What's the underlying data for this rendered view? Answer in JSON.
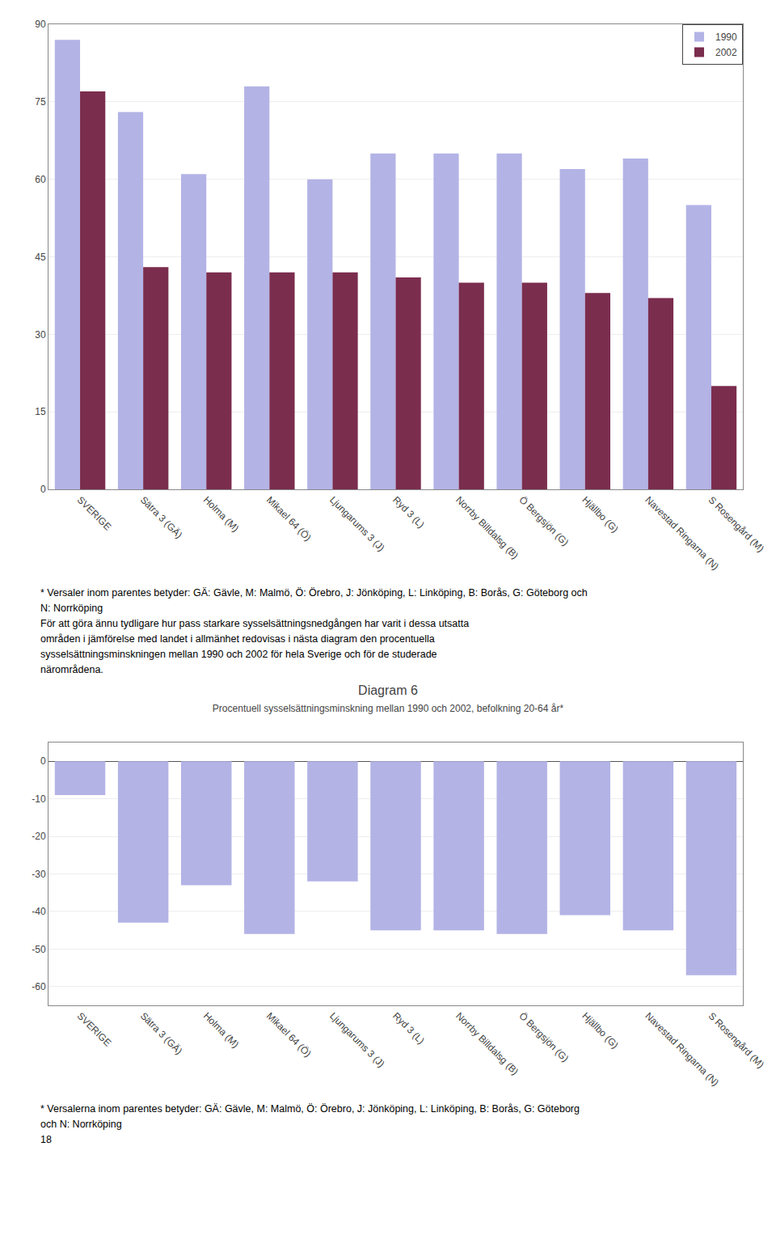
{
  "chart_data": [
    {
      "type": "bar",
      "categories": [
        "SVERIGE",
        "Sätra 3 (GÄ)",
        "Holma (M)",
        "Mikael 64 (Ö)",
        "Ljungarums 3 (J)",
        "Ryd 3 (L)",
        "Norrby Billdalsg (B)",
        "Ö Bergsjön (G)",
        "Hjällbo (G)",
        "Navestad Ringarna (N)",
        "S Rosengård (M)"
      ],
      "series": [
        {
          "name": "1990",
          "color": "#b3b3e6",
          "values": [
            87,
            73,
            61,
            78,
            60,
            65,
            65,
            65,
            62,
            64,
            55
          ]
        },
        {
          "name": "2002",
          "color": "#7b2d4e",
          "values": [
            77,
            43,
            42,
            42,
            42,
            41,
            40,
            40,
            38,
            37,
            20
          ]
        }
      ],
      "ylim": [
        0,
        90
      ],
      "yticks": [
        0,
        15,
        30,
        45,
        60,
        75,
        90
      ],
      "grid": true,
      "legend": "upper right",
      "annotations": [
        "* Versaler inom parentes betyder: GÄ: Gävle, M: Malmö, Ö: Örebro, J: Jönköping, L: Linköping, B: Borås, G: Göteborg och",
        "N: Norrköping",
        "För att göra ännu tydligare hur pass starkare sysselsättningsnedgången har varit i dessa utsatta",
        "områden i jämförelse med landet i allmänhet redovisas i nästa diagram den procentuella",
        "sysselsättningsminskningen mellan 1990 och 2002 för hela Sverige och för de studerade",
        "närområdena."
      ]
    },
    {
      "type": "bar",
      "title": "Diagram 6",
      "subtitle": "Procentuell sysselsättningsminskning mellan 1990 och 2002, befolkning 20-64 år*",
      "categories": [
        "SVERIGE",
        "Sätra 3 (GÄ)",
        "Holma (M)",
        "Mikael 64 (Ö)",
        "Ljungarums 3 (J)",
        "Ryd 3 (L)",
        "Norrby Billdalsg (B)",
        "Ö Bergsjön (G)",
        "Hjällbo (G)",
        "Navestad Ringarna (N)",
        "S Rosengård (M)"
      ],
      "values": [
        -9,
        -43,
        -33,
        -46,
        -32,
        -45,
        -45,
        -46,
        -41,
        -45,
        -57
      ],
      "color": "#b3b3e6",
      "ylim": [
        -65,
        5
      ],
      "yticks": [
        0,
        -10,
        -20,
        -30,
        -40,
        -50,
        -60
      ],
      "grid": true,
      "annotations": [
        "* Versalerna inom parentes betyder: GÄ: Gävle, M: Malmö, Ö: Örebro, J: Jönköping, L: Linköping, B: Borås, G: Göteborg",
        "och N: Norrköping",
        "18"
      ]
    }
  ]
}
